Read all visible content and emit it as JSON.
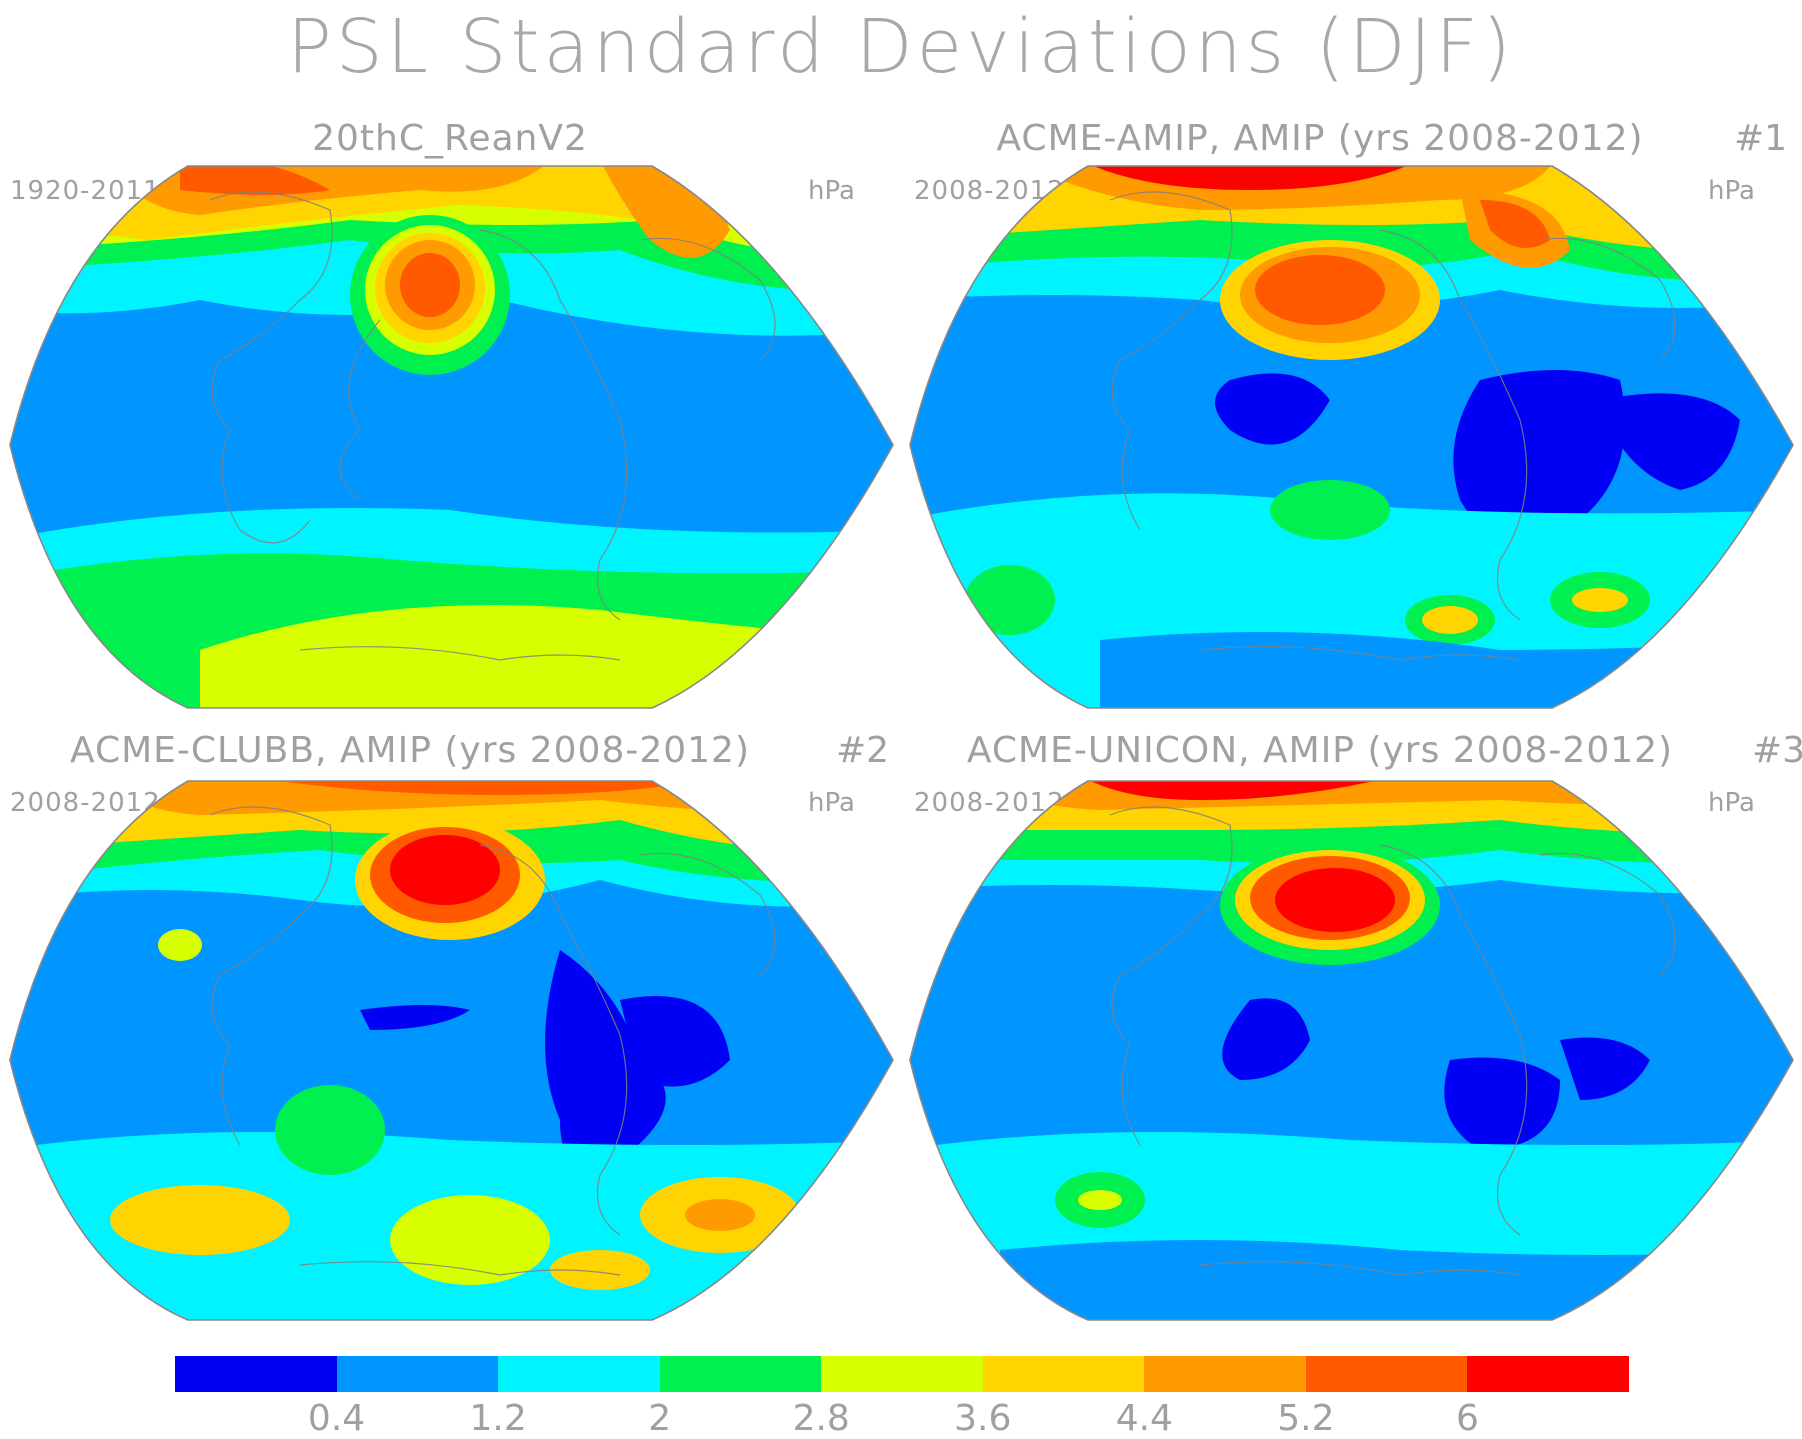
{
  "figure_title": "PSL Standard Deviations (DJF)",
  "panels": [
    {
      "title": "20thC_ReanV2",
      "number": "",
      "years": "1920-2011",
      "units": "hPa"
    },
    {
      "title": "ACME-AMIP, AMIP (yrs 2008-2012)",
      "number": "#1",
      "years": "2008-2012",
      "units": "hPa"
    },
    {
      "title": "ACME-CLUBB, AMIP (yrs 2008-2012)",
      "number": "#2",
      "years": "2008-2012",
      "units": "hPa"
    },
    {
      "title": "ACME-UNICON, AMIP (yrs 2008-2012)",
      "number": "#3",
      "years": "2008-2012",
      "units": "hPa"
    }
  ],
  "colorbar": {
    "colors": [
      "#0000f5",
      "#0095ff",
      "#00f4ff",
      "#00f050",
      "#d8ff00",
      "#ffd400",
      "#ff9a00",
      "#ff5a00",
      "#ff0000"
    ],
    "labels": [
      "0.4",
      "1.2",
      "2",
      "2.8",
      "3.6",
      "4.4",
      "5.2",
      "6"
    ]
  }
}
